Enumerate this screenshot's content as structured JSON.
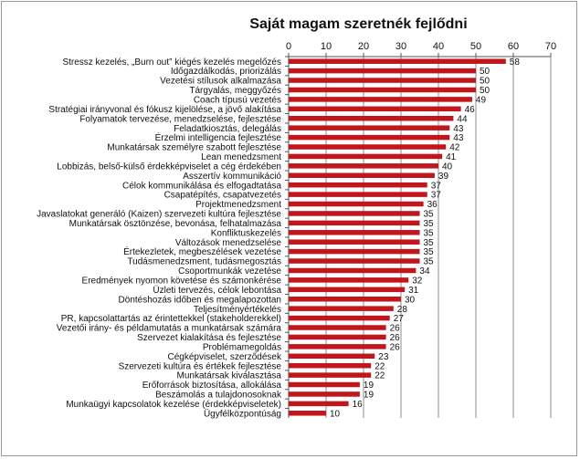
{
  "chart_data": {
    "type": "bar",
    "orientation": "horizontal",
    "title": "Saját magam szeretnék fejlődni",
    "xlim": [
      0,
      70
    ],
    "xticks": [
      0,
      10,
      20,
      30,
      40,
      50,
      60,
      70
    ],
    "x_axis_position": "top",
    "grid": true,
    "bar_color": "#c0161c",
    "categories": [
      "Stressz kezelés, „Burn out” kiégés kezelés megelőzés",
      "Időgazdálkodás, priorizálás",
      "Vezetési stílusok alkalmazása",
      "Tárgyalás, meggyőzés",
      "Coach típusú vezetés",
      "Stratégiai irányvonal és fókusz kijelölése, a jövő alakítása",
      "Folyamatok tervezése, menedzselése, fejlesztése",
      "Feladatkiosztás, delegálás",
      "Érzelmi intelligencia fejlesztése",
      "Munkatársak személyre szabott fejlesztése",
      "Lean menedzsment",
      "Lobbizás, belső-külső érdekképviselet a cég érdekében",
      "Asszertív kommunikáció",
      "Célok kommunikálása és elfogadtatása",
      "Csapatépítés, csapatvezetés",
      "Projektmenedzsment",
      "Javaslatokat generáló (Kaizen) szervezeti kultúra fejlesztése",
      "Munkatársak ösztönzése, bevonása, felhatalmazása",
      "Konfliktuskezelés",
      "Változások menedzselése",
      "Értekezletek, megbeszélések vezetése",
      "Tudásmenedzsment, tudásmegosztás",
      "Csoportmunkák vezetése",
      "Eredmények nyomon követése és számonkérése",
      "Üzleti tervezés, célok lebontása",
      "Döntéshozás időben és megalapozottan",
      "Teljesítményértékelés",
      "PR, kapcsolattartás az érintettekkel (stakeholderekkel)",
      "Vezetői irány- és példamutatás a munkatársak számára",
      "Szervezet kialakítása és fejlesztése",
      "Problémamegoldás",
      "Cégképviselet, szerződések",
      "Szervezeti kultúra és értékek fejlesztése",
      "Munkatársak kiválasztása",
      "Erőforrások biztosítása, allokálása",
      "Beszámolás a tulajdonosoknak",
      "Munkaügyi kapcsolatok kezelése (érdekképviseletek)",
      "Ügyfélközpontúság"
    ],
    "values": [
      58,
      50,
      50,
      50,
      49,
      46,
      44,
      43,
      43,
      42,
      41,
      40,
      39,
      37,
      37,
      36,
      35,
      35,
      35,
      35,
      35,
      35,
      34,
      32,
      31,
      30,
      28,
      27,
      26,
      26,
      26,
      23,
      22,
      22,
      19,
      19,
      16,
      10
    ]
  }
}
